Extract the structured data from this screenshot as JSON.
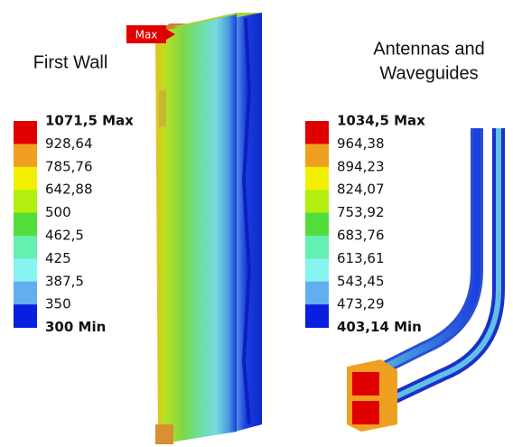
{
  "max_marker": "Max",
  "swatch_colors": [
    "#e00000",
    "#f0a020",
    "#f2f000",
    "#b4ee10",
    "#52dd3a",
    "#64f0b0",
    "#86f4f0",
    "#62aef0",
    "#0a1ee0"
  ],
  "panels": [
    {
      "title_lines": [
        "First Wall"
      ],
      "legend": [
        "1071,5 Max",
        "928,64",
        "785,76",
        "642,88",
        "500",
        "462,5",
        "425",
        "387,5",
        "350",
        "300 Min"
      ]
    },
    {
      "title_lines": [
        "Antennas and",
        "Waveguides"
      ],
      "legend": [
        "1034,5 Max",
        "964,38",
        "894,23",
        "824,07",
        "753,92",
        "683,76",
        "613,61",
        "543,45",
        "473,29",
        "403,14 Min"
      ]
    }
  ]
}
